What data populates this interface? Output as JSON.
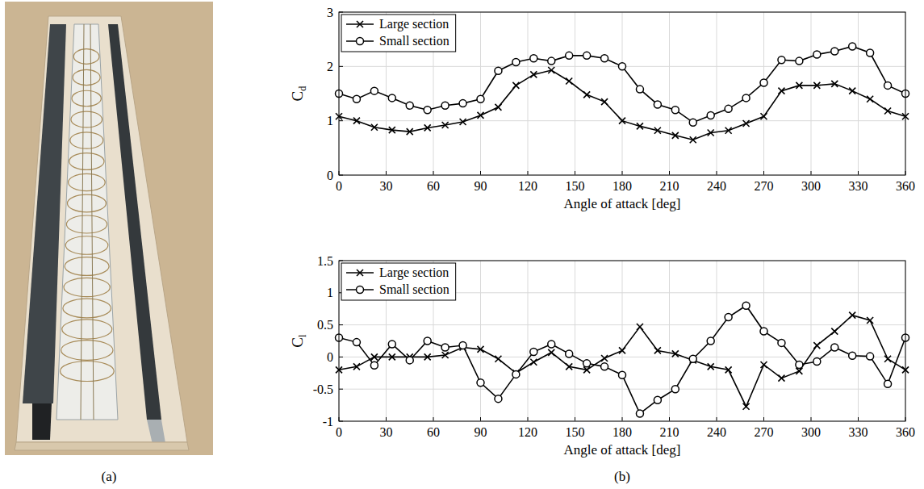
{
  "panel_labels": [
    "(a)",
    "(b)"
  ],
  "chart_data": [
    {
      "type": "line",
      "x_label": "Angle of attack [deg]",
      "y_label": "Cd",
      "x": [
        0,
        11.25,
        22.5,
        33.75,
        45,
        56.25,
        67.5,
        78.75,
        90,
        101.25,
        112.5,
        123.75,
        135,
        146.25,
        157.5,
        168.75,
        180,
        191.25,
        202.5,
        213.75,
        225,
        236.25,
        247.5,
        258.75,
        270,
        281.25,
        292.5,
        303.75,
        315,
        326.25,
        337.5,
        348.75,
        360
      ],
      "xlim": [
        0,
        360
      ],
      "xticks": [
        0,
        30,
        60,
        90,
        120,
        150,
        180,
        210,
        240,
        270,
        300,
        330,
        360
      ],
      "ylim": [
        0,
        3
      ],
      "yticks": [
        0,
        1,
        2,
        3
      ],
      "grid": true,
      "legend": "upper left",
      "series": [
        {
          "name": "Large section",
          "color": "#000000",
          "marker": "x",
          "line_style": "solid",
          "values": [
            1.08,
            1.0,
            0.88,
            0.83,
            0.8,
            0.87,
            0.92,
            0.98,
            1.1,
            1.25,
            1.65,
            1.85,
            1.93,
            1.73,
            1.48,
            1.35,
            1.0,
            0.9,
            0.82,
            0.73,
            0.65,
            0.78,
            0.82,
            0.95,
            1.08,
            1.55,
            1.65,
            1.65,
            1.68,
            1.55,
            1.4,
            1.18,
            1.08
          ]
        },
        {
          "name": "Small section",
          "color": "#000000",
          "marker": "o",
          "line_style": "solid",
          "values": [
            1.5,
            1.4,
            1.55,
            1.42,
            1.28,
            1.2,
            1.28,
            1.32,
            1.4,
            1.92,
            2.08,
            2.15,
            2.1,
            2.2,
            2.2,
            2.15,
            2.0,
            1.58,
            1.3,
            1.2,
            0.97,
            1.1,
            1.22,
            1.42,
            1.7,
            2.12,
            2.1,
            2.22,
            2.28,
            2.37,
            2.25,
            1.65,
            1.5
          ]
        }
      ]
    },
    {
      "type": "line",
      "x_label": "Angle of attack [deg]",
      "y_label": "Cl",
      "x": [
        0,
        11.25,
        22.5,
        33.75,
        45,
        56.25,
        67.5,
        78.75,
        90,
        101.25,
        112.5,
        123.75,
        135,
        146.25,
        157.5,
        168.75,
        180,
        191.25,
        202.5,
        213.75,
        225,
        236.25,
        247.5,
        258.75,
        270,
        281.25,
        292.5,
        303.75,
        315,
        326.25,
        337.5,
        348.75,
        360
      ],
      "xlim": [
        0,
        360
      ],
      "xticks": [
        0,
        30,
        60,
        90,
        120,
        150,
        180,
        210,
        240,
        270,
        300,
        330,
        360
      ],
      "ylim": [
        -1,
        1.5
      ],
      "yticks": [
        -1,
        -0.5,
        0,
        0.5,
        1,
        1.5
      ],
      "grid": true,
      "legend": "upper left",
      "series": [
        {
          "name": "Large section",
          "color": "#000000",
          "marker": "x",
          "line_style": "solid",
          "values": [
            -0.2,
            -0.15,
            0,
            0,
            0,
            0,
            0.03,
            0.15,
            0.12,
            -0.03,
            -0.25,
            -0.08,
            0.07,
            -0.15,
            -0.2,
            -0.02,
            0.1,
            0.47,
            0.1,
            0.05,
            -0.05,
            -0.15,
            -0.2,
            -0.77,
            -0.12,
            -0.33,
            -0.22,
            0.18,
            0.4,
            0.65,
            0.57,
            -0.03,
            -0.2
          ]
        },
        {
          "name": "Small section",
          "color": "#000000",
          "marker": "o",
          "line_style": "solid",
          "values": [
            0.3,
            0.23,
            -0.13,
            0.2,
            -0.05,
            0.25,
            0.15,
            0.18,
            -0.4,
            -0.65,
            -0.27,
            0.08,
            0.2,
            0.05,
            -0.1,
            -0.15,
            -0.28,
            -0.88,
            -0.67,
            -0.5,
            -0.03,
            0.25,
            0.62,
            0.8,
            0.4,
            0.22,
            -0.12,
            -0.07,
            0.15,
            0.02,
            0.01,
            -0.42,
            0.3
          ]
        }
      ]
    }
  ]
}
